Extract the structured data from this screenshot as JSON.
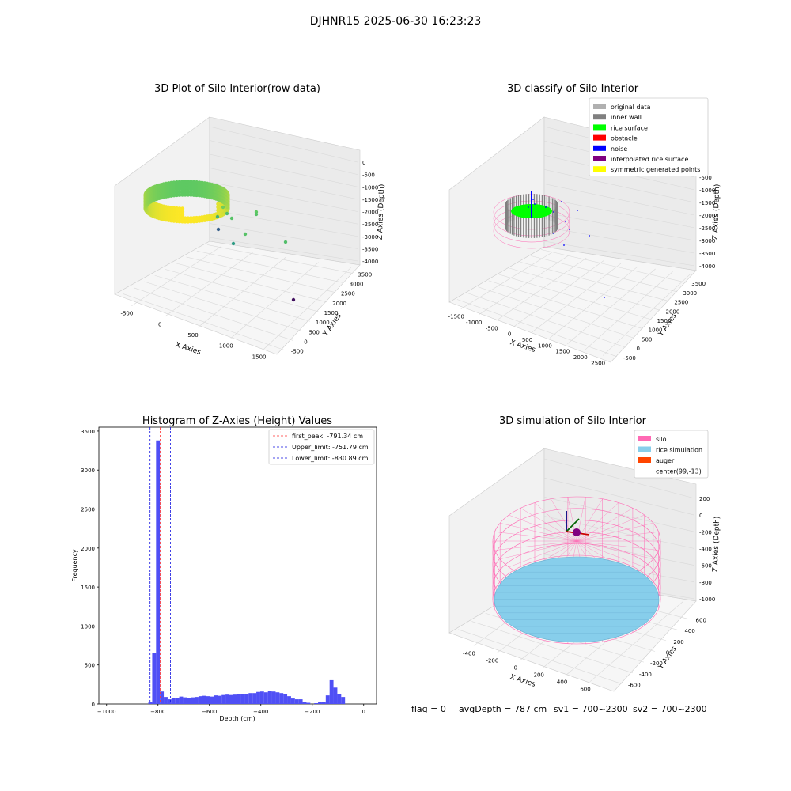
{
  "suptitle": "DJHNR15 2025-06-30 16:23:23",
  "footer": {
    "flag": "flag = 0",
    "avg_depth": "avgDepth = 787 cm",
    "sv1": "sv1 = 700~2300",
    "sv2": "sv2 = 700~2300"
  },
  "chart_data": [
    {
      "type": "scatter",
      "title": "3D Plot of Silo Interior(row data)",
      "xlabel": "X Axies",
      "ylabel": "Y Axies",
      "zlabel": "Z Axies (Depth)",
      "x_ticks": [
        "-500",
        "0",
        "500",
        "1000",
        "1500"
      ],
      "y_ticks": [
        "-500",
        "0",
        "500",
        "1000",
        "1500",
        "2000",
        "2500",
        "3000",
        "3500"
      ],
      "z_ticks": [
        "0",
        "-500",
        "-1000",
        "-1500",
        "-2000",
        "-2500",
        "-3000",
        "-3500",
        "-4000"
      ],
      "colormap": [
        "#440154",
        "#3b528b",
        "#21918c",
        "#5ec962",
        "#fde725"
      ]
    },
    {
      "type": "scatter",
      "title": "3D classify of Silo Interior",
      "xlabel": "X Axies",
      "ylabel": "Y Axies",
      "zlabel": "Z Axies (Depth)",
      "x_ticks": [
        "-1500",
        "-1000",
        "-500",
        "0",
        "500",
        "1000",
        "1500",
        "2000",
        "2500"
      ],
      "y_ticks": [
        "-500",
        "0",
        "500",
        "1000",
        "1500",
        "2000",
        "2500",
        "3000",
        "3500"
      ],
      "z_ticks": [
        "0",
        "-500",
        "-1000",
        "-1500",
        "-2000",
        "-2500",
        "-3000",
        "-3500",
        "-4000"
      ],
      "legend_position": "top-right",
      "legend": [
        {
          "label": "original data",
          "color": "#b0b0b0"
        },
        {
          "label": "inner wall",
          "color": "#808080"
        },
        {
          "label": "rice surface",
          "color": "#00ff00"
        },
        {
          "label": "obstacle",
          "color": "#ff0000"
        },
        {
          "label": "noise",
          "color": "#0000ff"
        },
        {
          "label": "interpolated rice surface",
          "color": "#800080"
        },
        {
          "label": "symmetric generated points",
          "color": "#ffff00"
        }
      ]
    },
    {
      "type": "bar",
      "title": "Histogram of Z-Axies (Height) Values",
      "xlabel": "Depth (cm)",
      "ylabel": "Frequency",
      "xlim": [
        -1030,
        50
      ],
      "ylim": [
        0,
        3550
      ],
      "x_ticks": [
        -1000,
        -800,
        -600,
        -400,
        -200,
        0
      ],
      "y_ticks": [
        0,
        500,
        1000,
        1500,
        2000,
        2500,
        3000,
        3500
      ],
      "bar_color": "#4f4ff5",
      "bin_width": 15,
      "bins": [
        {
          "x": -830,
          "value": 20
        },
        {
          "x": -815,
          "value": 650
        },
        {
          "x": -800,
          "value": 3380
        },
        {
          "x": -785,
          "value": 160
        },
        {
          "x": -770,
          "value": 90
        },
        {
          "x": -755,
          "value": 60
        },
        {
          "x": -740,
          "value": 80
        },
        {
          "x": -725,
          "value": 75
        },
        {
          "x": -710,
          "value": 95
        },
        {
          "x": -695,
          "value": 85
        },
        {
          "x": -680,
          "value": 80
        },
        {
          "x": -665,
          "value": 85
        },
        {
          "x": -650,
          "value": 90
        },
        {
          "x": -635,
          "value": 100
        },
        {
          "x": -620,
          "value": 105
        },
        {
          "x": -605,
          "value": 100
        },
        {
          "x": -590,
          "value": 95
        },
        {
          "x": -575,
          "value": 110
        },
        {
          "x": -560,
          "value": 105
        },
        {
          "x": -545,
          "value": 115
        },
        {
          "x": -530,
          "value": 120
        },
        {
          "x": -515,
          "value": 115
        },
        {
          "x": -500,
          "value": 120
        },
        {
          "x": -485,
          "value": 130
        },
        {
          "x": -470,
          "value": 130
        },
        {
          "x": -455,
          "value": 125
        },
        {
          "x": -440,
          "value": 140
        },
        {
          "x": -425,
          "value": 140
        },
        {
          "x": -410,
          "value": 155
        },
        {
          "x": -395,
          "value": 160
        },
        {
          "x": -380,
          "value": 150
        },
        {
          "x": -365,
          "value": 165
        },
        {
          "x": -350,
          "value": 160
        },
        {
          "x": -335,
          "value": 150
        },
        {
          "x": -320,
          "value": 140
        },
        {
          "x": -305,
          "value": 125
        },
        {
          "x": -290,
          "value": 100
        },
        {
          "x": -275,
          "value": 70
        },
        {
          "x": -260,
          "value": 60
        },
        {
          "x": -245,
          "value": 60
        },
        {
          "x": -230,
          "value": 30
        },
        {
          "x": -215,
          "value": 15
        },
        {
          "x": -200,
          "value": 0
        },
        {
          "x": -185,
          "value": 10
        },
        {
          "x": -170,
          "value": 30
        },
        {
          "x": -155,
          "value": 30
        },
        {
          "x": -140,
          "value": 110
        },
        {
          "x": -125,
          "value": 305
        },
        {
          "x": -110,
          "value": 210
        },
        {
          "x": -95,
          "value": 130
        },
        {
          "x": -80,
          "value": 90
        },
        {
          "x": -65,
          "value": 0
        },
        {
          "x": -50,
          "value": 0
        },
        {
          "x": -35,
          "value": 0
        },
        {
          "x": -20,
          "value": 0
        },
        {
          "x": -5,
          "value": 0
        },
        {
          "x": 10,
          "value": 0
        }
      ],
      "vlines": [
        {
          "x": -791.34,
          "color": "#ff3030",
          "label": "first_peak: -791.34 cm"
        },
        {
          "x": -751.79,
          "color": "#1010e0",
          "label": "Upper_limit: -751.79 cm"
        },
        {
          "x": -830.89,
          "color": "#1010e0",
          "label": "Lower_limit: -830.89 cm"
        }
      ],
      "legend_position": "top-right"
    },
    {
      "type": "scatter",
      "title": "3D simulation of Silo Interior",
      "xlabel": "X Axies",
      "ylabel": "Y Axies",
      "zlabel": "Z Axies (Depth)",
      "x_ticks": [
        "-400",
        "-200",
        "0",
        "200",
        "400",
        "600"
      ],
      "y_ticks": [
        "-600",
        "-400",
        "-200",
        "0",
        "200",
        "400",
        "600"
      ],
      "z_ticks": [
        "200",
        "0",
        "-200",
        "-400",
        "-600",
        "-800",
        "-1000"
      ],
      "legend_position": "top-right",
      "legend": [
        {
          "label": "silo",
          "color": "#ff69b4"
        },
        {
          "label": "rice simulation",
          "color": "#87ceeb"
        },
        {
          "label": "auger",
          "color": "#ff4500"
        },
        {
          "label": "center(99,-13)",
          "color": "#ffffff"
        }
      ]
    }
  ]
}
